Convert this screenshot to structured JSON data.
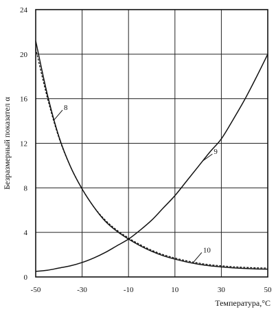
{
  "chart_data": {
    "type": "line",
    "xlabel": "Температура,°С",
    "ylabel": "Безразмерный показател α",
    "xlim": [
      -50,
      50
    ],
    "ylim": [
      0,
      24
    ],
    "x_ticks": [
      -50,
      -30,
      -10,
      10,
      30,
      50
    ],
    "y_ticks": [
      0,
      4,
      8,
      12,
      16,
      20,
      24
    ],
    "grid": true,
    "series": [
      {
        "name": "8",
        "style": "solid",
        "x": [
          -50,
          -45,
          -40,
          -35,
          -30,
          -25,
          -20,
          -15,
          -10,
          -5,
          0,
          5,
          10,
          15,
          20,
          25,
          30,
          35,
          40,
          45,
          50
        ],
        "y": [
          21.2,
          16.4,
          12.6,
          9.9,
          7.9,
          6.3,
          5.0,
          4.1,
          3.4,
          2.8,
          2.3,
          1.9,
          1.6,
          1.35,
          1.15,
          1.0,
          0.9,
          0.82,
          0.76,
          0.72,
          0.7
        ]
      },
      {
        "name": "10",
        "style": "dashed",
        "x": [
          -50,
          -45,
          -40,
          -35,
          -30,
          -25,
          -20,
          -15,
          -10,
          -5,
          0,
          5,
          10,
          15,
          20,
          25,
          30,
          35,
          40,
          45,
          50
        ],
        "y": [
          20.5,
          16.1,
          12.5,
          9.9,
          7.9,
          6.3,
          5.1,
          4.2,
          3.5,
          2.9,
          2.4,
          2.0,
          1.7,
          1.45,
          1.25,
          1.1,
          1.0,
          0.92,
          0.86,
          0.82,
          0.8
        ]
      },
      {
        "name": "9",
        "style": "solid",
        "x": [
          -50,
          -45,
          -40,
          -35,
          -30,
          -25,
          -20,
          -15,
          -10,
          -5,
          0,
          5,
          10,
          15,
          20,
          25,
          30,
          35,
          40,
          45,
          50
        ],
        "y": [
          0.5,
          0.6,
          0.8,
          1.0,
          1.3,
          1.7,
          2.2,
          2.8,
          3.4,
          4.2,
          5.1,
          6.2,
          7.3,
          8.6,
          9.9,
          11.2,
          12.4,
          14.1,
          15.9,
          17.9,
          20.0
        ]
      }
    ],
    "curve_labels": [
      {
        "text": "8",
        "series": "8",
        "at_x": -42
      },
      {
        "text": "9",
        "series": "9",
        "at_x": 22
      },
      {
        "text": "10",
        "series": "10",
        "at_x": 18
      }
    ]
  }
}
